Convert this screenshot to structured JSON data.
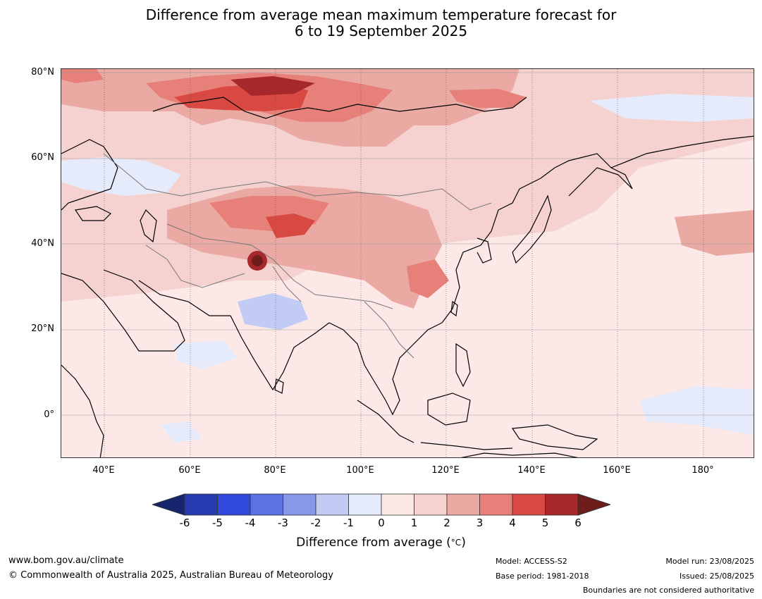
{
  "title": {
    "line1": "Difference from average mean maximum temperature forecast for",
    "line2": "6 to 19 September 2025"
  },
  "map": {
    "lat_labels": [
      "80°N",
      "60°N",
      "40°N",
      "20°N",
      "0°"
    ],
    "lon_labels": [
      "40°E",
      "60°E",
      "80°E",
      "100°E",
      "120°E",
      "140°E",
      "160°E",
      "180°"
    ],
    "extent": {
      "lon_min": 30,
      "lon_max": 192,
      "lat_min": -10,
      "lat_max": 80
    },
    "ocean_base_color": "#fce9e7"
  },
  "colorbar": {
    "ticks": [
      "-6",
      "-5",
      "-4",
      "-3",
      "-2",
      "-1",
      "0",
      "1",
      "2",
      "3",
      "4",
      "5",
      "6"
    ],
    "colors": [
      "#15246d",
      "#273aaf",
      "#3049dc",
      "#5a72e2",
      "#8898e8",
      "#c1cbf3",
      "#e6ebfb",
      "#fce9e7",
      "#f5d2cf",
      "#eba9a4",
      "#e68079",
      "#d84a41",
      "#a7282a",
      "#6f1c1c"
    ],
    "label": "Difference from average (",
    "label_unit": "°C",
    "label_close": ")"
  },
  "footer": {
    "website": "www.bom.gov.au/climate",
    "copyright": "© Commonwealth of Australia 2025, Australian Bureau of Meteorology",
    "model": "Model: ACCESS-S2",
    "base_period": "Base period: 1981-2018",
    "model_run": "Model run: 23/08/2025",
    "issued": "Issued: 25/08/2025",
    "disclaimer": "Boundaries are not considered authoritative"
  }
}
